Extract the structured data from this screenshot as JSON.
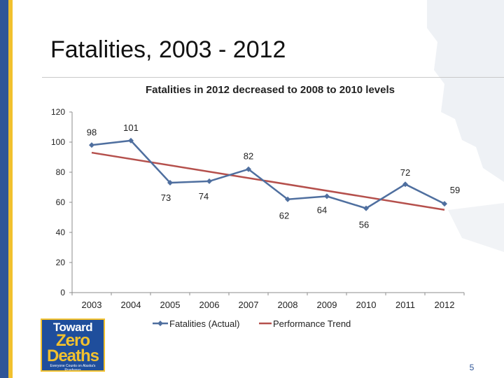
{
  "slide": {
    "title": "Fatalities, 2003 - 2012",
    "page_number": "5",
    "logo": {
      "line1": "Toward",
      "line2": "Zero",
      "line3": "Deaths",
      "tagline": "Everyone Counts on Alaska's Roadways"
    }
  },
  "colors": {
    "actual_series": "#4f6f9f",
    "trend_series": "#b5504c",
    "left_bar": "#2f5597",
    "accent_gold": "#f2c12e"
  },
  "chart_data": {
    "type": "line",
    "title": "Fatalities in 2012 decreased to 2008 to 2010 levels",
    "xlabel": "",
    "ylabel": "",
    "x": [
      "2003",
      "2004",
      "2005",
      "2006",
      "2007",
      "2008",
      "2009",
      "2010",
      "2011",
      "2012"
    ],
    "yticks": [
      "0",
      "20",
      "40",
      "60",
      "80",
      "100",
      "120"
    ],
    "ylim": [
      0,
      120
    ],
    "grid": false,
    "legend": "bottom",
    "series": [
      {
        "name": "Fatalities (Actual)",
        "values": [
          98,
          101,
          73,
          74,
          82,
          62,
          64,
          56,
          72,
          59
        ],
        "labels": [
          "98",
          "101",
          "73",
          "74",
          "82",
          "62",
          "64",
          "56",
          "72",
          "59"
        ],
        "marker": "diamond"
      },
      {
        "name": "Performance Trend",
        "values": [
          93,
          89.6,
          86.2,
          82.8,
          79.4,
          76,
          72.6,
          69.2,
          65.8,
          55
        ],
        "trend_endpoints": [
          93,
          55
        ],
        "marker": "none"
      }
    ]
  }
}
